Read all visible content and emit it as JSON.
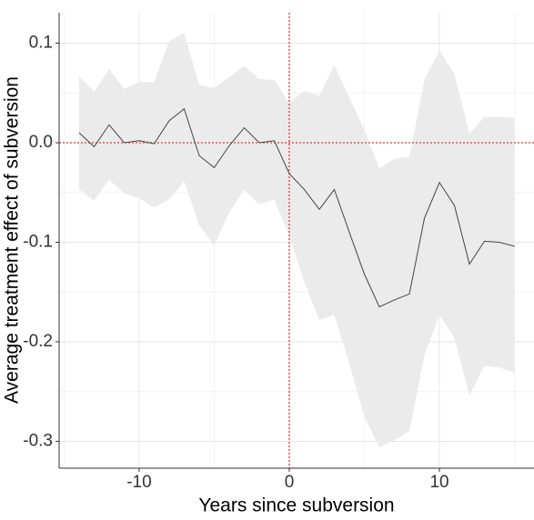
{
  "chart_data": {
    "type": "line-band",
    "x_label": "Years since subversion",
    "y_label": "Average treatment effect of subversion",
    "x": [
      -14,
      -13,
      -12,
      -11,
      -10,
      -9,
      -8,
      -7,
      -6,
      -5,
      -4,
      -3,
      -2,
      -1,
      0,
      1,
      2,
      3,
      4,
      5,
      6,
      7,
      8,
      9,
      10,
      11,
      12,
      13,
      14,
      15
    ],
    "values": [
      0.01,
      -0.004,
      0.018,
      0.0,
      0.002,
      -0.001,
      0.022,
      0.034,
      -0.013,
      -0.025,
      -0.003,
      0.015,
      0.0,
      0.002,
      -0.031,
      -0.047,
      -0.067,
      -0.047,
      -0.09,
      -0.132,
      -0.165,
      -0.158,
      -0.152,
      -0.076,
      -0.04,
      -0.063,
      -0.122,
      -0.099,
      -0.1,
      -0.104
    ],
    "upper": [
      0.067,
      0.051,
      0.074,
      0.054,
      0.061,
      0.061,
      0.102,
      0.11,
      0.058,
      0.055,
      0.066,
      0.077,
      0.064,
      0.063,
      0.04,
      0.052,
      0.047,
      0.078,
      0.045,
      0.013,
      -0.026,
      -0.016,
      -0.014,
      0.063,
      0.093,
      0.069,
      0.009,
      0.026,
      0.026,
      0.025
    ],
    "lower": [
      -0.047,
      -0.058,
      -0.037,
      -0.051,
      -0.056,
      -0.065,
      -0.057,
      -0.039,
      -0.083,
      -0.103,
      -0.07,
      -0.047,
      -0.062,
      -0.057,
      -0.094,
      -0.14,
      -0.178,
      -0.173,
      -0.222,
      -0.275,
      -0.306,
      -0.299,
      -0.29,
      -0.214,
      -0.173,
      -0.196,
      -0.254,
      -0.224,
      -0.226,
      -0.231
    ],
    "color": "#444444",
    "band_color": "#ebebeb",
    "xlim": [
      -15.33,
      16.3
    ],
    "ylim": [
      -0.327,
      0.1306
    ],
    "xticks": [
      -10,
      0,
      10
    ],
    "yticks": [
      -0.3,
      -0.2,
      -0.1,
      {
        "value": 0,
        "label": "0.0"
      },
      0.1
    ],
    "grid": true,
    "reference_lines": {
      "x": 0,
      "y": 0,
      "color": "#e8383d"
    }
  }
}
